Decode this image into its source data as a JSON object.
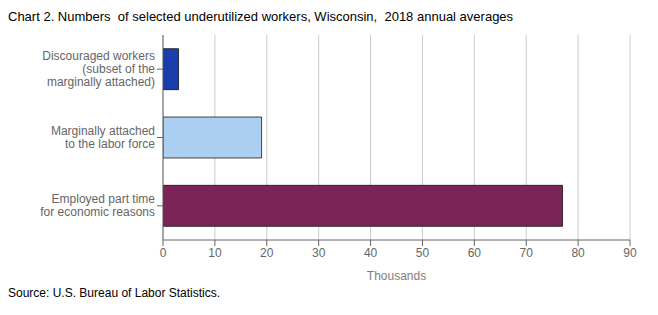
{
  "chart_data": {
    "type": "bar",
    "orientation": "horizontal",
    "title": "Chart 2. Numbers  of selected underutilized workers, Wisconsin,  2018 annual averages",
    "categories": [
      "Discouraged workers\n(subset of the\nmarginally attached)",
      "Marginally attached\nto the labor force",
      "Employed part time\nfor economic reasons"
    ],
    "values": [
      3.0,
      19.0,
      77.0
    ],
    "colors": [
      "#1a3fad",
      "#aacff0",
      "#7b2457"
    ],
    "xlabel": "Thousands",
    "xlim": [
      0,
      90
    ],
    "xticks": [
      0,
      10,
      20,
      30,
      40,
      50,
      60,
      70,
      80,
      90
    ],
    "grid": true,
    "annotations": [
      "Source: U.S. Bureau of Labor Statistics."
    ]
  }
}
